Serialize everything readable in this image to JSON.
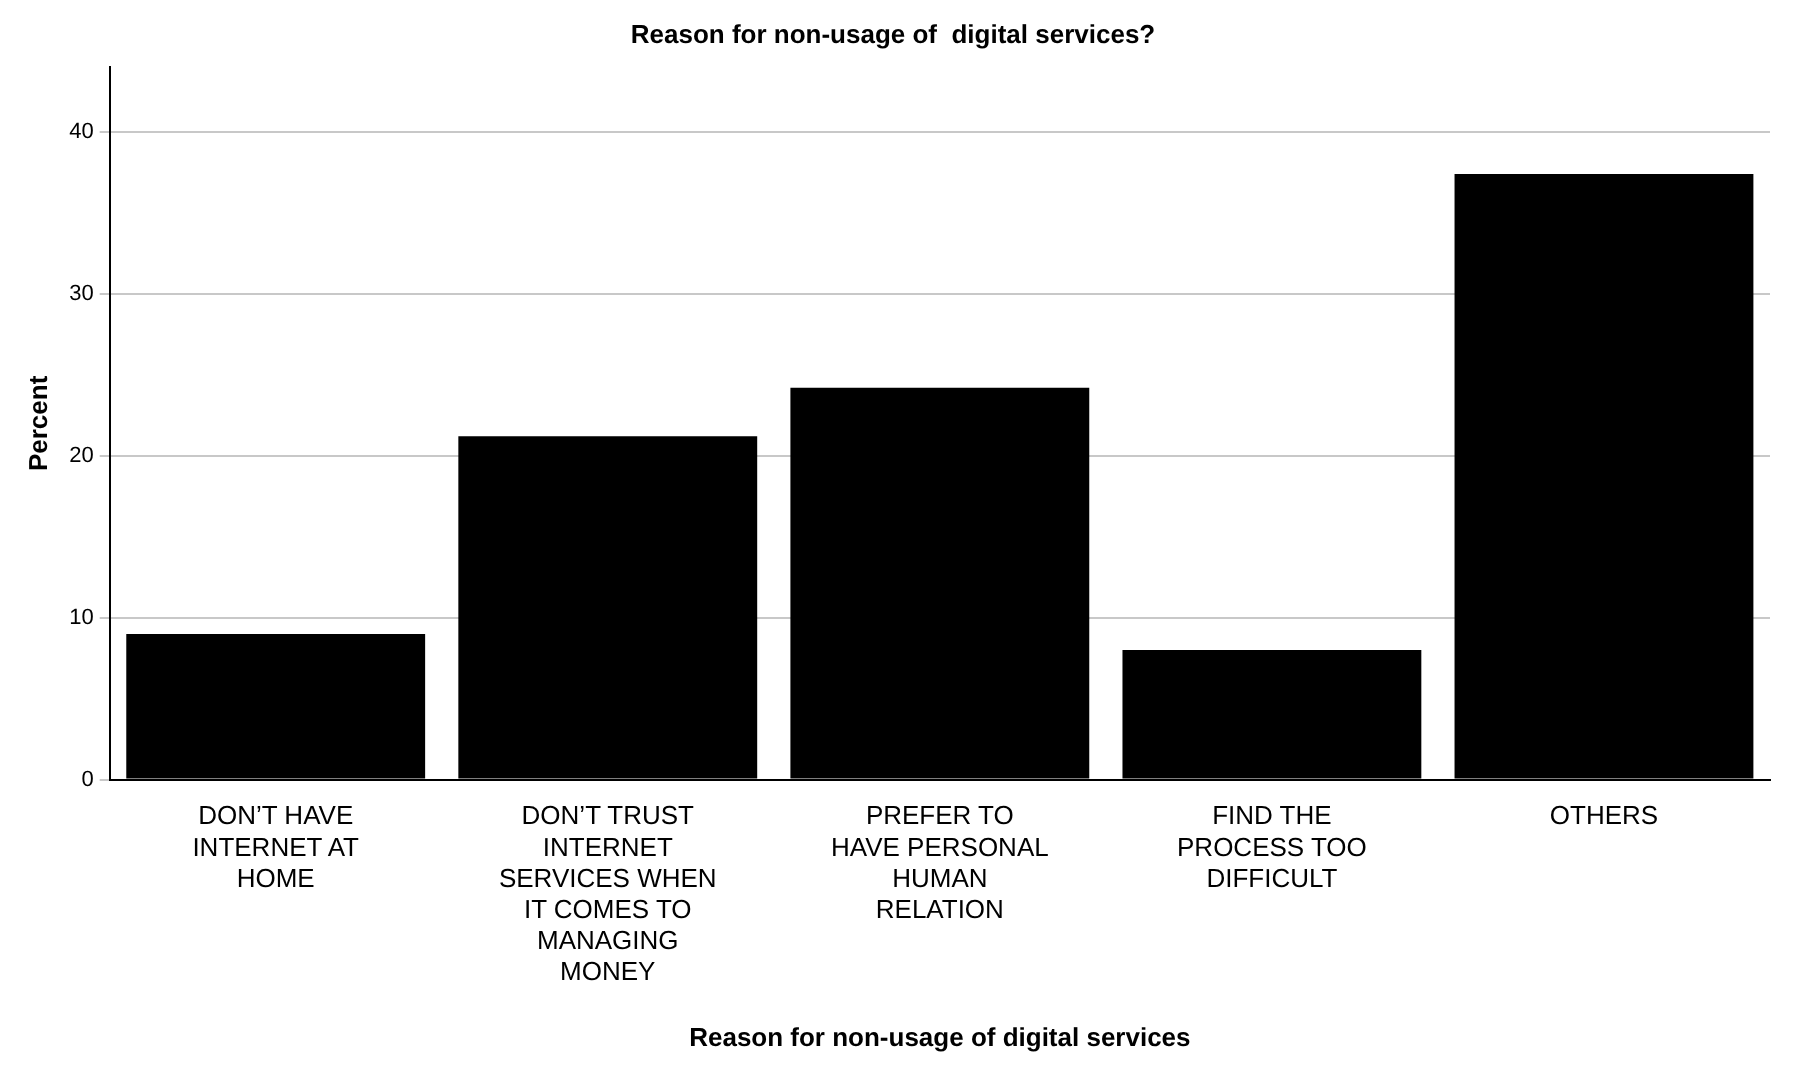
{
  "chart_data": {
    "type": "bar",
    "title": "Reason for non-usage of  digital services?",
    "xlabel": "Reason for non-usage of digital services",
    "ylabel": "Percent",
    "categories": [
      "DON’T HAVE INTERNET AT HOME",
      "DON’T TRUST INTERNET SERVICES WHEN IT COMES TO MANAGING MONEY",
      "PREFER TO HAVE PERSONAL HUMAN RELATION",
      "FIND THE PROCESS TOO DIFFICULT",
      "OTHERS"
    ],
    "values": [
      9.0,
      21.2,
      24.2,
      8.0,
      37.4
    ],
    "color": "#000000",
    "ylim": [
      0,
      44
    ],
    "yticks": [
      0,
      10,
      20,
      30,
      40
    ],
    "grid": "y"
  }
}
